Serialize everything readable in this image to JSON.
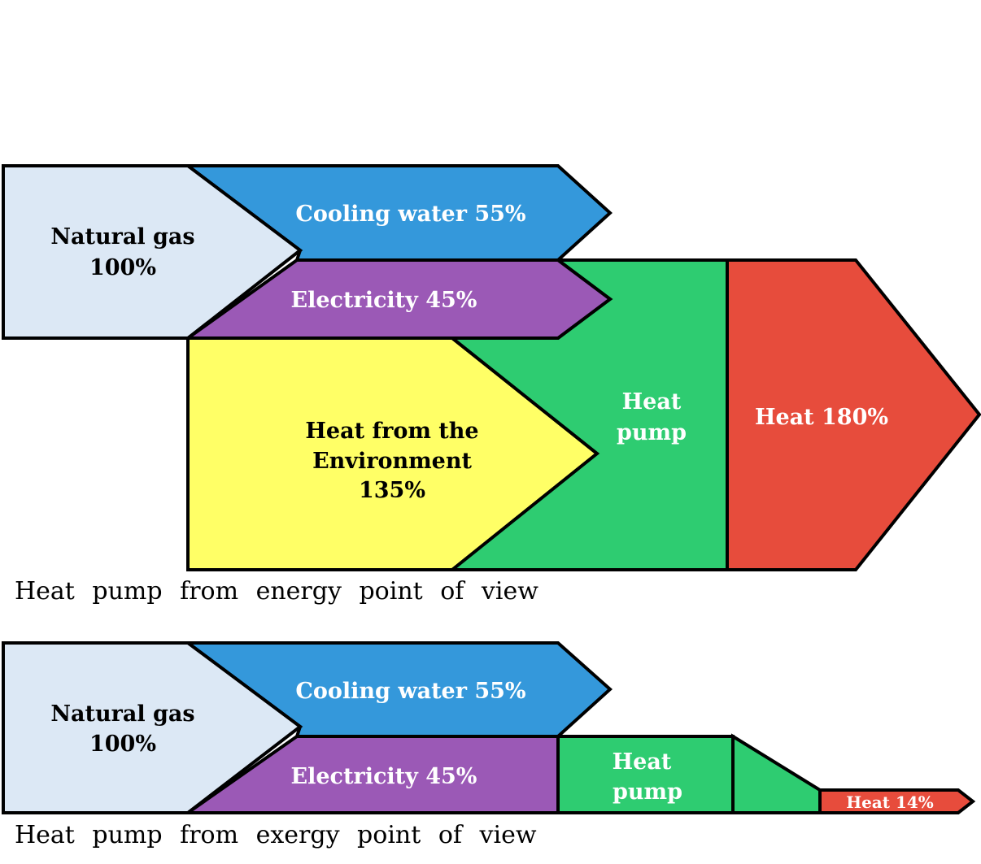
{
  "colors": {
    "natural_gas": "#dce8f5",
    "cooling_water": "#3498db",
    "electricity": "#9b59b6",
    "environment": "#ffff66",
    "heat_pump": "#2ecc71",
    "heat": "#e74c3c"
  },
  "energy_view": {
    "natural_gas": {
      "line1": "Natural gas",
      "line2": "100%"
    },
    "cooling_water": "Cooling water 55%",
    "electricity": "Electricity 45%",
    "environment": {
      "line1": "Heat from the",
      "line2": "Environment",
      "line3": "135%"
    },
    "heat_pump": {
      "line1": "Heat",
      "line2": "pump"
    },
    "heat": "Heat 180%",
    "caption": "Heat pump from energy point of view"
  },
  "exergy_view": {
    "natural_gas": {
      "line1": "Natural gas",
      "line2": "100%"
    },
    "cooling_water": "Cooling water 55%",
    "electricity": "Electricity 45%",
    "heat_pump": {
      "line1": "Heat",
      "line2": "pump"
    },
    "heat": "Heat 14%",
    "caption": "Heat pump from exergy point of view"
  }
}
